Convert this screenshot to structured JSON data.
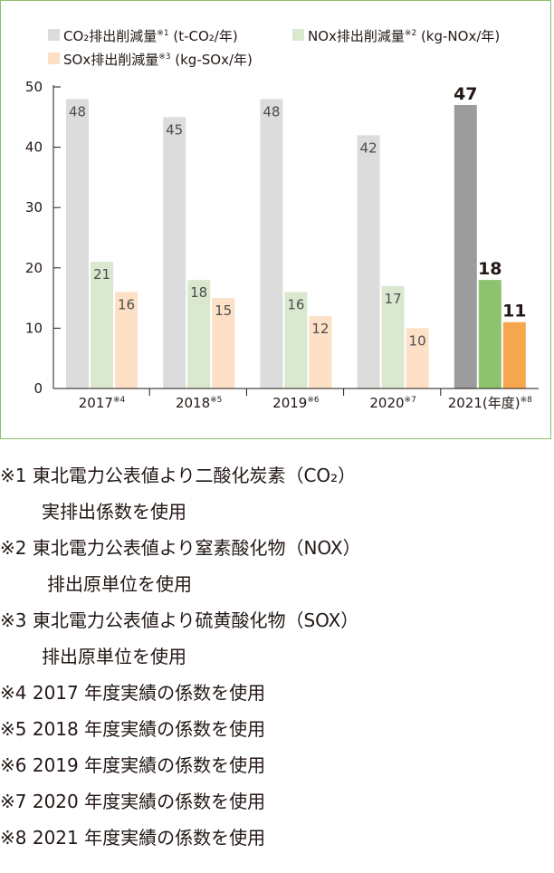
{
  "chart_data": {
    "type": "bar",
    "categories": [
      "2017",
      "2018",
      "2019",
      "2020",
      "2021(年度)"
    ],
    "category_superscripts": [
      "※4",
      "※5",
      "※6",
      "※7",
      "※8"
    ],
    "series": [
      {
        "name": "CO₂排出削減量",
        "name_sup": "※1",
        "unit": " (t-CO₂/年)",
        "values": [
          48,
          45,
          48,
          42,
          47
        ],
        "color": "#dcdcdc",
        "highlight_color": "#9c9c9c"
      },
      {
        "name": "NOx排出削減量",
        "name_sup": "※2",
        "unit": " (kg-NOx/年)",
        "values": [
          21,
          18,
          16,
          17,
          18
        ],
        "color": "#d9e8cf",
        "highlight_color": "#8dc26f"
      },
      {
        "name": "SOx排出削減量",
        "name_sup": "※3",
        "unit": " (kg-SOx/年)",
        "values": [
          16,
          15,
          12,
          10,
          11
        ],
        "color": "#fde0c6",
        "highlight_color": "#f5a64f"
      }
    ],
    "highlight_index": 4,
    "yticks": [
      0,
      10,
      20,
      30,
      40,
      50
    ],
    "ylim": [
      0,
      50
    ],
    "legend_position": "top",
    "grid": false
  },
  "notes": [
    {
      "lines": [
        "※1 東北電力公表値より二酸化炭素（CO₂）",
        "実排出係数を使用"
      ]
    },
    {
      "lines": [
        "※2 東北電力公表値より窒素酸化物（NOX）",
        "排出原単位を使用"
      ]
    },
    {
      "lines": [
        "※3 東北電力公表値より硫黄酸化物（SOX）",
        "排出原単位を使用"
      ]
    },
    {
      "lines": [
        "※4 2017 年度実績の係数を使用"
      ]
    },
    {
      "lines": [
        "※5 2018 年度実績の係数を使用"
      ]
    },
    {
      "lines": [
        "※6 2019 年度実績の係数を使用"
      ]
    },
    {
      "lines": [
        "※7 2020 年度実績の係数を使用"
      ]
    },
    {
      "lines": [
        "※8 2021 年度実績の係数を使用"
      ]
    }
  ]
}
